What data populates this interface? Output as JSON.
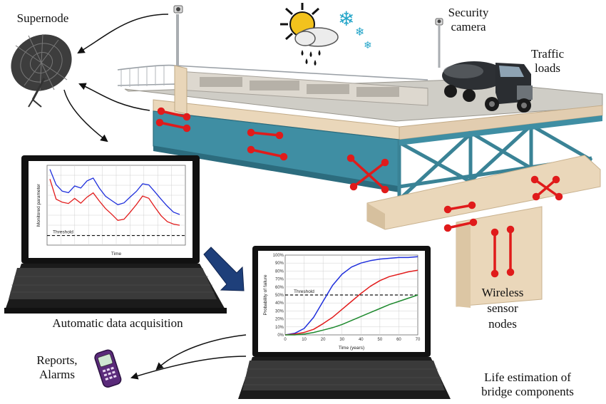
{
  "labels": {
    "supernode": "Supernode",
    "security_camera": "Security\ncamera",
    "traffic_loads": "Traffic\nloads",
    "wireless_sensor_nodes": "Wireless\nsensor\nnodes",
    "automatic_data_acquisition": "Automatic data acquisition",
    "reports_alarms": "Reports,\nAlarms",
    "life_estimation": "Life estimation of\nbridge components"
  },
  "colors": {
    "girder": "#3f8ea3",
    "deck": "#e9d6b9",
    "sensor": "#e01b1b",
    "arrow": "#1e3f7a",
    "series_blue": "#1f2fdc",
    "series_red": "#e21c1c",
    "series_green": "#1e8a2e"
  },
  "chart_data": [
    {
      "type": "line",
      "title": "",
      "xlabel": "Time",
      "ylabel": "Monitored parameter",
      "threshold_label": "Threshold",
      "series": [
        {
          "values": [
            0.95,
            0.78,
            0.7,
            0.66,
            0.72,
            0.69,
            0.8,
            0.86,
            0.74,
            0.62,
            0.54,
            0.48,
            0.52,
            0.62,
            0.7,
            0.78,
            0.74,
            0.64,
            0.56,
            0.5,
            0.44,
            0.4
          ]
        },
        {
          "values": [
            0.85,
            0.6,
            0.54,
            0.5,
            0.56,
            0.52,
            0.62,
            0.68,
            0.56,
            0.44,
            0.36,
            0.3,
            0.34,
            0.44,
            0.52,
            0.6,
            0.56,
            0.46,
            0.38,
            0.32,
            0.28,
            0.24
          ]
        }
      ],
      "threshold": 0.12
    },
    {
      "type": "line",
      "title": "",
      "xlabel": "Time (years)",
      "ylabel": "Probability of failure",
      "threshold_label": "Threshold",
      "x_ticks": [
        "0",
        "10",
        "20",
        "30",
        "40",
        "50",
        "60",
        "70"
      ],
      "y_ticks": [
        "0%",
        "10%",
        "20%",
        "30%",
        "40%",
        "50%",
        "60%",
        "70%",
        "80%",
        "90%",
        "100%"
      ],
      "xlim": [
        0,
        70
      ],
      "ylim": [
        0,
        100
      ],
      "threshold": 50,
      "series": [
        {
          "x": [
            0,
            5,
            10,
            15,
            20,
            25,
            30,
            35,
            40,
            45,
            50,
            55,
            60,
            65,
            70
          ],
          "values": [
            0,
            2,
            8,
            22,
            42,
            62,
            76,
            85,
            90,
            93,
            95,
            96,
            97,
            97,
            98
          ]
        },
        {
          "x": [
            0,
            5,
            10,
            15,
            20,
            25,
            30,
            35,
            40,
            45,
            50,
            55,
            60,
            65,
            70
          ],
          "values": [
            0,
            1,
            3,
            7,
            14,
            22,
            32,
            42,
            52,
            61,
            68,
            73,
            76,
            79,
            81
          ]
        },
        {
          "x": [
            0,
            5,
            10,
            15,
            20,
            25,
            30,
            35,
            40,
            45,
            50,
            55,
            60,
            65,
            70
          ],
          "values": [
            0,
            0,
            1,
            3,
            6,
            9,
            13,
            18,
            23,
            28,
            33,
            38,
            42,
            46,
            50
          ]
        }
      ]
    }
  ]
}
